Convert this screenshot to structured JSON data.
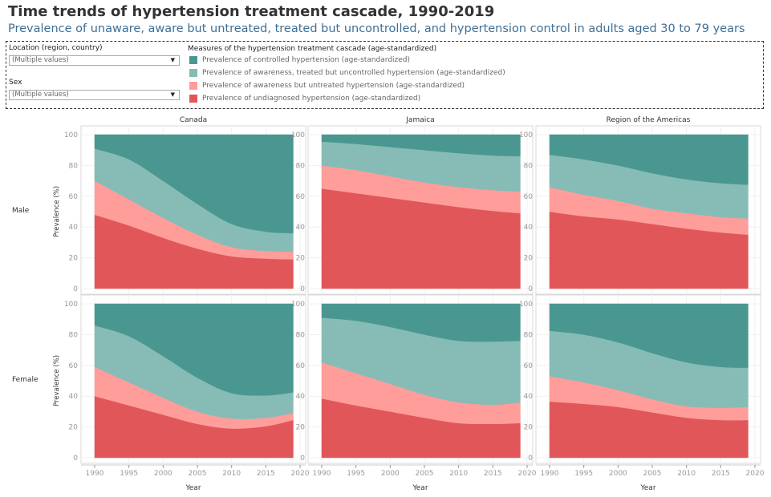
{
  "title": "Time trends of hypertension treatment cascade, 1990-2019",
  "subtitle": "Prevalence of unaware, aware but untreated, treated but uncontrolled, and hypertension control in adults aged 30 to 79 years",
  "filters": {
    "location": {
      "label": "Location (region, country)",
      "value": "(Multiple values)"
    },
    "sex": {
      "label": "Sex",
      "value": "(Multiple values)"
    }
  },
  "legend": {
    "title": "Measures of the hypertension treatment cascade (age-standardized)",
    "items": [
      {
        "label": "Prevalence of controlled hypertension (age-standardized)",
        "color": "#4a9791"
      },
      {
        "label": "Prevalence of awareness, treated but uncontrolled hypertension (age-standardized)",
        "color": "#86bcb5"
      },
      {
        "label": "Prevalence of awareness but untreated hypertension (age-standardized)",
        "color": "#ff9d9a"
      },
      {
        "label": "Prevalence of undiagnosed hypertension (age-standardized)",
        "color": "#e15759"
      }
    ]
  },
  "chart_data": {
    "type": "area",
    "stacked": true,
    "columns": [
      "Canada",
      "Jamaica",
      "Region of the Americas"
    ],
    "rows": [
      "Male",
      "Female"
    ],
    "xlabel": "Year",
    "ylabel": "Prevalence (%)",
    "xlim": [
      1990,
      2020
    ],
    "ylim": [
      0,
      100
    ],
    "xticks": [
      1990,
      1995,
      2000,
      2005,
      2010,
      2015,
      2020
    ],
    "yticks": [
      0,
      20,
      40,
      60,
      80,
      100
    ],
    "grid": true,
    "x": [
      1990,
      1995,
      2000,
      2005,
      2010,
      2015,
      2019
    ],
    "series_order": [
      "undiagnosed",
      "untreated",
      "uncontrolled",
      "controlled"
    ],
    "panels": [
      {
        "row": "Male",
        "column": "Canada",
        "undiagnosed": [
          48,
          41,
          33,
          26,
          21,
          19.5,
          19
        ],
        "untreated": [
          22,
          17,
          13,
          9,
          6,
          5,
          5
        ],
        "uncontrolled": [
          21,
          26,
          24,
          20,
          15,
          12.5,
          12
        ],
        "controlled": [
          9,
          16,
          30,
          45,
          58,
          63,
          64
        ]
      },
      {
        "row": "Male",
        "column": "Jamaica",
        "undiagnosed": [
          65,
          62,
          59,
          56,
          53,
          50.5,
          49
        ],
        "untreated": [
          15,
          15,
          14,
          13,
          13,
          13.5,
          14
        ],
        "uncontrolled": [
          15.5,
          17,
          19,
          21,
          22,
          22.5,
          23
        ],
        "controlled": [
          4.5,
          6,
          8,
          10,
          12,
          13.5,
          14
        ]
      },
      {
        "row": "Male",
        "column": "Region of the Americas",
        "undiagnosed": [
          50,
          47,
          45,
          42,
          39,
          36.5,
          35
        ],
        "untreated": [
          16,
          14,
          12,
          10,
          10,
          10,
          10.5
        ],
        "uncontrolled": [
          21,
          23,
          23,
          23,
          22,
          22,
          22
        ],
        "controlled": [
          13,
          16,
          20,
          25,
          29,
          31.5,
          32.5
        ]
      },
      {
        "row": "Female",
        "column": "Canada",
        "undiagnosed": [
          40,
          34,
          28,
          22,
          19,
          20.5,
          24.5
        ],
        "untreated": [
          19,
          15,
          11,
          8,
          6.5,
          5.5,
          4.5
        ],
        "uncontrolled": [
          27,
          30,
          27,
          22,
          16.5,
          14.5,
          13.5
        ],
        "controlled": [
          14,
          21,
          34,
          48,
          58,
          59.5,
          57.5
        ]
      },
      {
        "row": "Female",
        "column": "Jamaica",
        "undiagnosed": [
          38.5,
          34,
          30,
          26,
          22.5,
          22,
          22.5
        ],
        "untreated": [
          23.5,
          21,
          18,
          15,
          13.5,
          12.5,
          13.5
        ],
        "uncontrolled": [
          29,
          34,
          37,
          39,
          40,
          41,
          40
        ],
        "controlled": [
          9,
          11,
          15,
          20,
          24,
          24.5,
          24
        ]
      },
      {
        "row": "Female",
        "column": "Region of the Americas",
        "undiagnosed": [
          36.5,
          35,
          33,
          29.5,
          26,
          24.5,
          24.5
        ],
        "untreated": [
          16.5,
          14,
          11,
          8.5,
          7.5,
          8,
          8.5
        ],
        "uncontrolled": [
          29.5,
          31,
          31,
          30,
          28.5,
          26.5,
          25.5
        ],
        "controlled": [
          17.5,
          20,
          25,
          32,
          38,
          41,
          41.5
        ]
      }
    ],
    "colors": {
      "controlled": "#4a9791",
      "uncontrolled": "#86bcb5",
      "untreated": "#ff9d9a",
      "undiagnosed": "#e15759"
    }
  }
}
